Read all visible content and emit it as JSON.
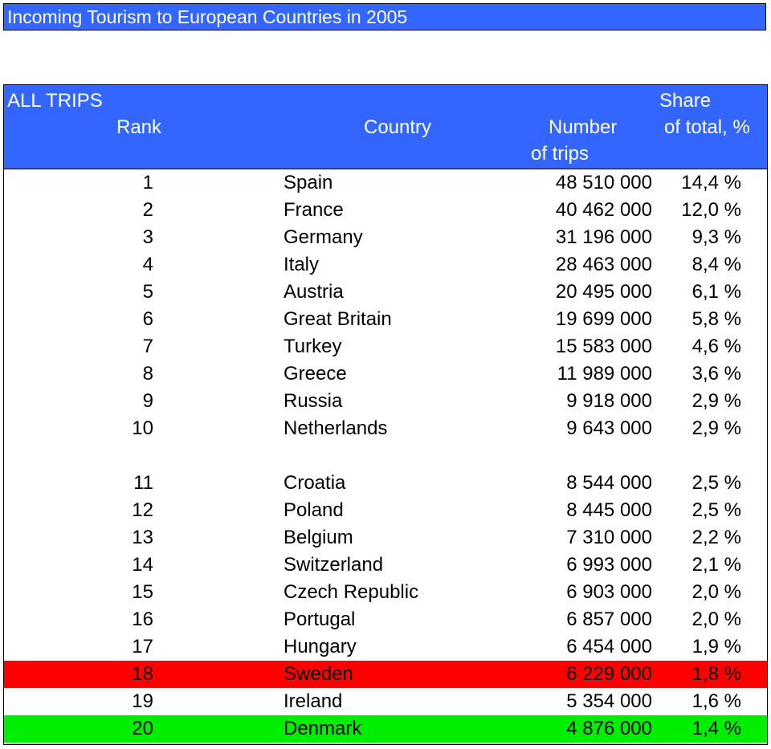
{
  "title": "Incoming Tourism to European Countries in 2005",
  "header": {
    "all_trips": "ALL TRIPS",
    "rank": "Rank",
    "country": "Country",
    "number": "Number",
    "of_trips": "of trips",
    "share": "Share",
    "of_total": "of total, %"
  },
  "colors": {
    "header_blue": "#3366ff",
    "highlight_red": "#ff0000",
    "highlight_green": "#00ee00"
  },
  "rows": [
    {
      "rank": "1",
      "country": "Spain",
      "number": "48 510 000",
      "share": "14,4 %"
    },
    {
      "rank": "2",
      "country": "France",
      "number": "40 462 000",
      "share": "12,0 %"
    },
    {
      "rank": "3",
      "country": "Germany",
      "number": "31 196 000",
      "share": "9,3 %"
    },
    {
      "rank": "4",
      "country": "Italy",
      "number": "28 463 000",
      "share": "8,4 %"
    },
    {
      "rank": "5",
      "country": "Austria",
      "number": "20 495 000",
      "share": "6,1 %"
    },
    {
      "rank": "6",
      "country": "Great Britain",
      "number": "19 699 000",
      "share": "5,8 %"
    },
    {
      "rank": "7",
      "country": "Turkey",
      "number": "15 583 000",
      "share": "4,6 %"
    },
    {
      "rank": "8",
      "country": "Greece",
      "number": "11 989 000",
      "share": "3,6 %"
    },
    {
      "rank": "9",
      "country": "Russia",
      "number": "9 918 000",
      "share": "2,9 %"
    },
    {
      "rank": "10",
      "country": "Netherlands",
      "number": "9 643 000",
      "share": "2,9 %"
    },
    {
      "rank": "11",
      "country": "Croatia",
      "number": "8 544 000",
      "share": "2,5 %"
    },
    {
      "rank": "12",
      "country": "Poland",
      "number": "8 445 000",
      "share": "2,5 %"
    },
    {
      "rank": "13",
      "country": "Belgium",
      "number": "7 310 000",
      "share": "2,2 %"
    },
    {
      "rank": "14",
      "country": "Switzerland",
      "number": "6 993 000",
      "share": "2,1 %"
    },
    {
      "rank": "15",
      "country": "Czech Republic",
      "number": "6 903 000",
      "share": "2,0 %"
    },
    {
      "rank": "16",
      "country": "Portugal",
      "number": "6 857 000",
      "share": "2,0 %"
    },
    {
      "rank": "17",
      "country": "Hungary",
      "number": "6 454 000",
      "share": "1,9 %"
    },
    {
      "rank": "18",
      "country": "Sweden",
      "number": "6 229 000",
      "share": "1,8 %",
      "highlight": "red"
    },
    {
      "rank": "19",
      "country": "Ireland",
      "number": "5 354 000",
      "share": "1,6 %"
    },
    {
      "rank": "20",
      "country": "Denmark",
      "number": "4 876 000",
      "share": "1,4 %",
      "highlight": "green"
    }
  ]
}
